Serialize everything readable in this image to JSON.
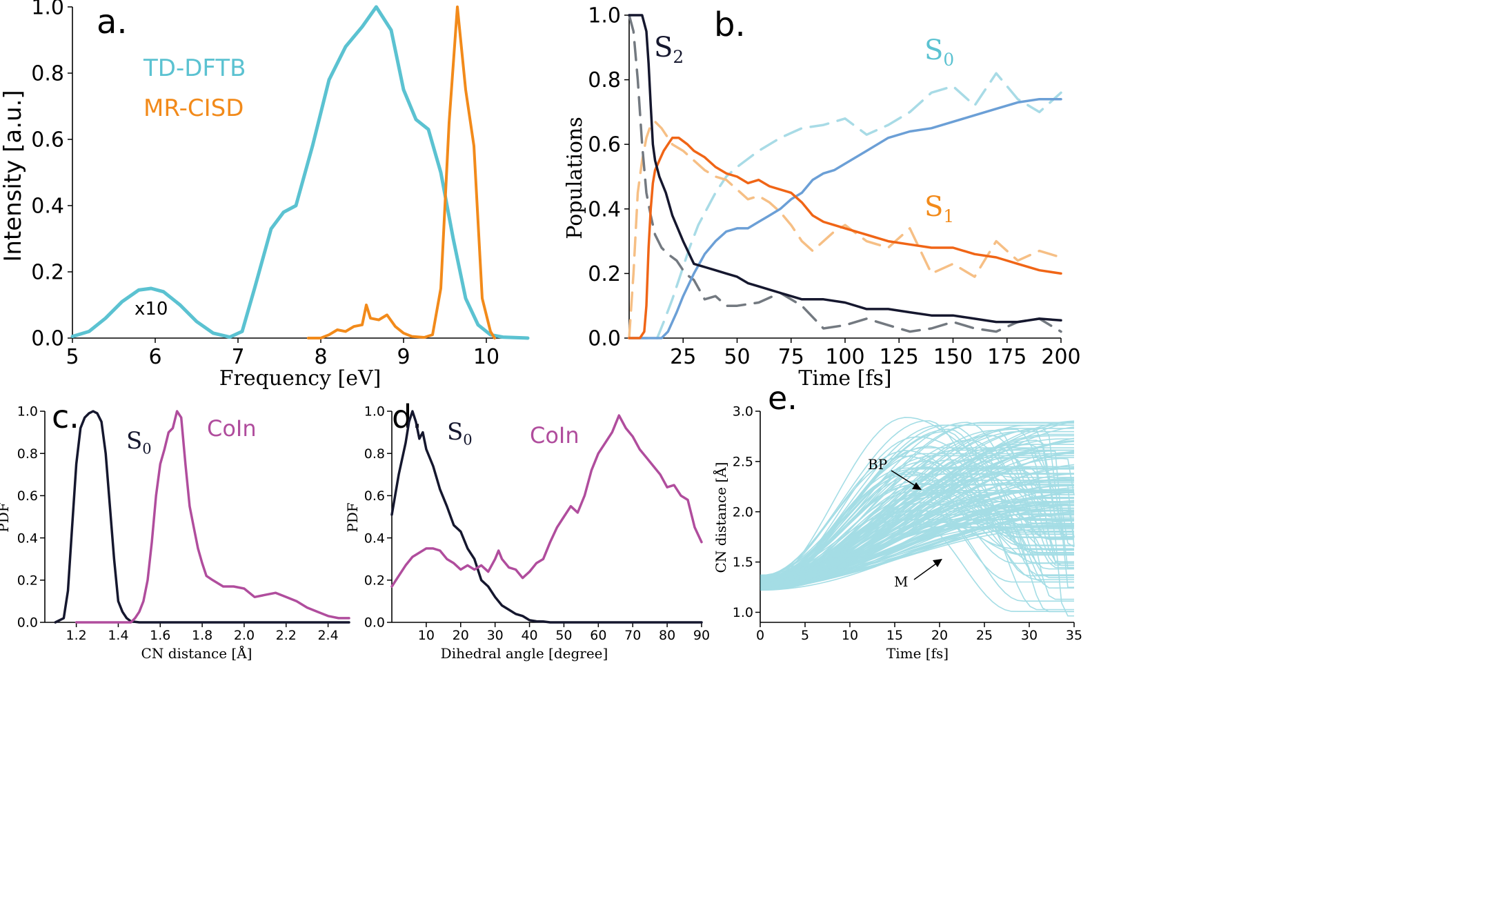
{
  "colors": {
    "cyan": "#5bc2d1",
    "orange": "#f28a1a",
    "navy": "#15172e",
    "magenta": "#b04d9d",
    "gray": "#737980",
    "lightcyan": "#a8dbe6",
    "lightorange": "#f6bf85",
    "s0blue": "#6b9fd6",
    "s1orange": "#f06516"
  },
  "chart_data": [
    {
      "panel": "a.",
      "type": "line",
      "xlabel": "Frequency [eV]",
      "ylabel": "Intensity [a.u.]",
      "xlim": [
        5,
        10.5
      ],
      "ylim": [
        0,
        1
      ],
      "xticks": [
        "5",
        "6",
        "7",
        "8",
        "9",
        "10"
      ],
      "yticks": [
        "0.0",
        "0.2",
        "0.4",
        "0.6",
        "0.8",
        "1.0"
      ],
      "annotation": "x10",
      "series": [
        {
          "name": "TD-DFTB",
          "color": "#5bc2d1",
          "x": [
            5.0,
            5.2,
            5.4,
            5.6,
            5.8,
            5.95,
            6.1,
            6.3,
            6.5,
            6.7,
            6.9,
            7.05,
            7.2,
            7.4,
            7.55,
            7.7,
            7.9,
            8.1,
            8.3,
            8.5,
            8.67,
            8.85,
            9.0,
            9.15,
            9.3,
            9.45,
            9.6,
            9.75,
            9.9,
            10.05,
            10.2,
            10.5
          ],
          "y": [
            0.005,
            0.02,
            0.06,
            0.11,
            0.145,
            0.15,
            0.14,
            0.1,
            0.05,
            0.015,
            0.003,
            0.02,
            0.15,
            0.33,
            0.38,
            0.4,
            0.58,
            0.78,
            0.88,
            0.94,
            1.0,
            0.93,
            0.75,
            0.66,
            0.63,
            0.5,
            0.3,
            0.12,
            0.04,
            0.01,
            0.003,
            0.0
          ]
        },
        {
          "name": "MR-CISD",
          "color": "#f28a1a",
          "x": [
            7.85,
            8.0,
            8.1,
            8.2,
            8.3,
            8.4,
            8.5,
            8.55,
            8.6,
            8.7,
            8.8,
            8.9,
            9.0,
            9.1,
            9.25,
            9.35,
            9.45,
            9.55,
            9.65,
            9.75,
            9.85,
            9.95,
            10.05,
            10.1
          ],
          "y": [
            0.0,
            0.0,
            0.01,
            0.025,
            0.02,
            0.035,
            0.04,
            0.1,
            0.06,
            0.055,
            0.07,
            0.035,
            0.015,
            0.005,
            0.002,
            0.01,
            0.15,
            0.65,
            1.0,
            0.75,
            0.58,
            0.12,
            0.02,
            0.0
          ]
        }
      ]
    },
    {
      "panel": "b.",
      "type": "line",
      "xlabel": "Time [fs]",
      "ylabel": "Populations",
      "xlim": [
        0,
        200
      ],
      "ylim": [
        0,
        1
      ],
      "xticks": [
        "25",
        "50",
        "75",
        "100",
        "125",
        "150",
        "175",
        "200"
      ],
      "yticks": [
        "0.0",
        "0.2",
        "0.4",
        "0.6",
        "0.8",
        "1.0"
      ],
      "labels": {
        "S2": "S",
        "S2sub": "2",
        "S0": "S",
        "S0sub": "0",
        "S1": "S",
        "S1sub": "1"
      },
      "series": [
        {
          "name": "S2 solid",
          "color": "#15172e",
          "dash": false,
          "x": [
            0,
            6,
            8,
            9,
            10,
            11,
            12,
            14,
            17,
            20,
            25,
            30,
            35,
            40,
            45,
            50,
            55,
            60,
            65,
            70,
            75,
            80,
            90,
            100,
            110,
            120,
            130,
            140,
            150,
            160,
            170,
            180,
            190,
            200
          ],
          "y": [
            1.0,
            1.0,
            0.95,
            0.85,
            0.72,
            0.6,
            0.55,
            0.5,
            0.45,
            0.38,
            0.3,
            0.23,
            0.22,
            0.21,
            0.2,
            0.19,
            0.17,
            0.16,
            0.15,
            0.14,
            0.13,
            0.12,
            0.12,
            0.11,
            0.09,
            0.09,
            0.08,
            0.07,
            0.07,
            0.06,
            0.05,
            0.05,
            0.06,
            0.055
          ]
        },
        {
          "name": "S0 solid",
          "color": "#6b9fd6",
          "dash": false,
          "x": [
            0,
            15,
            18,
            22,
            25,
            30,
            35,
            40,
            45,
            50,
            55,
            60,
            65,
            70,
            75,
            80,
            85,
            90,
            95,
            100,
            110,
            120,
            130,
            140,
            150,
            160,
            170,
            180,
            190,
            200
          ],
          "y": [
            0,
            0,
            0.02,
            0.08,
            0.13,
            0.2,
            0.26,
            0.3,
            0.33,
            0.34,
            0.34,
            0.36,
            0.38,
            0.4,
            0.43,
            0.45,
            0.49,
            0.51,
            0.52,
            0.54,
            0.58,
            0.62,
            0.64,
            0.65,
            0.67,
            0.69,
            0.71,
            0.73,
            0.74,
            0.74
          ]
        },
        {
          "name": "S1 solid",
          "color": "#f06516",
          "dash": false,
          "x": [
            0,
            5,
            7,
            8,
            9,
            10,
            11,
            12,
            14,
            16,
            18,
            20,
            23,
            27,
            30,
            35,
            40,
            45,
            50,
            55,
            60,
            65,
            70,
            75,
            80,
            85,
            90,
            95,
            100,
            110,
            120,
            130,
            140,
            150,
            160,
            170,
            180,
            190,
            200
          ],
          "y": [
            0,
            0,
            0.02,
            0.1,
            0.28,
            0.4,
            0.48,
            0.52,
            0.55,
            0.58,
            0.6,
            0.62,
            0.62,
            0.6,
            0.58,
            0.56,
            0.53,
            0.51,
            0.5,
            0.48,
            0.49,
            0.47,
            0.46,
            0.45,
            0.42,
            0.38,
            0.36,
            0.35,
            0.34,
            0.32,
            0.3,
            0.29,
            0.28,
            0.28,
            0.26,
            0.25,
            0.23,
            0.21,
            0.2
          ]
        },
        {
          "name": "S2 dashed",
          "color": "#737980",
          "dash": true,
          "x": [
            0,
            2,
            4,
            6,
            8,
            10,
            12,
            15,
            18,
            22,
            26,
            30,
            35,
            40,
            45,
            50,
            60,
            70,
            80,
            90,
            100,
            110,
            120,
            130,
            140,
            150,
            160,
            170,
            180,
            190,
            200
          ],
          "y": [
            1.0,
            0.95,
            0.8,
            0.6,
            0.45,
            0.38,
            0.32,
            0.28,
            0.26,
            0.24,
            0.2,
            0.18,
            0.12,
            0.13,
            0.1,
            0.1,
            0.11,
            0.14,
            0.1,
            0.03,
            0.04,
            0.06,
            0.04,
            0.02,
            0.03,
            0.05,
            0.03,
            0.02,
            0.05,
            0.06,
            0.02
          ]
        },
        {
          "name": "S0 dashed",
          "color": "#a8dbe6",
          "dash": true,
          "x": [
            0,
            13,
            16,
            20,
            24,
            28,
            32,
            36,
            40,
            45,
            50,
            60,
            70,
            80,
            90,
            100,
            110,
            120,
            130,
            140,
            150,
            160,
            170,
            180,
            190,
            200
          ],
          "y": [
            0,
            0,
            0.05,
            0.12,
            0.2,
            0.28,
            0.35,
            0.4,
            0.45,
            0.5,
            0.53,
            0.58,
            0.62,
            0.65,
            0.66,
            0.68,
            0.63,
            0.66,
            0.7,
            0.76,
            0.78,
            0.72,
            0.82,
            0.74,
            0.7,
            0.76
          ]
        },
        {
          "name": "S1 dashed",
          "color": "#f6bf85",
          "dash": true,
          "x": [
            0,
            2,
            4,
            6,
            8,
            10,
            12,
            15,
            20,
            25,
            30,
            35,
            40,
            45,
            50,
            55,
            60,
            65,
            70,
            75,
            80,
            85,
            90,
            95,
            100,
            110,
            120,
            130,
            140,
            150,
            160,
            170,
            180,
            190,
            200
          ],
          "y": [
            0,
            0.2,
            0.45,
            0.55,
            0.62,
            0.66,
            0.67,
            0.65,
            0.6,
            0.58,
            0.55,
            0.52,
            0.5,
            0.49,
            0.46,
            0.43,
            0.44,
            0.42,
            0.39,
            0.35,
            0.3,
            0.27,
            0.3,
            0.33,
            0.35,
            0.3,
            0.28,
            0.34,
            0.2,
            0.23,
            0.19,
            0.3,
            0.24,
            0.27,
            0.25
          ]
        }
      ]
    },
    {
      "panel": "c.",
      "type": "line",
      "xlabel": "CN distance [Å]",
      "ylabel": "PDF",
      "xlim": [
        1.05,
        2.5
      ],
      "ylim": [
        0,
        1
      ],
      "xticks": [
        "1.2",
        "1.4",
        "1.6",
        "1.8",
        "2.0",
        "2.2",
        "2.4"
      ],
      "yticks": [
        "0.0",
        "0.2",
        "0.4",
        "0.6",
        "0.8",
        "1.0"
      ],
      "labels": {
        "S0": "S",
        "S0sub": "0",
        "CoIn": "CoIn"
      },
      "series": [
        {
          "name": "S0",
          "color": "#15172e",
          "x": [
            1.1,
            1.14,
            1.16,
            1.18,
            1.2,
            1.22,
            1.24,
            1.26,
            1.28,
            1.3,
            1.32,
            1.34,
            1.36,
            1.38,
            1.4,
            1.42,
            1.44,
            1.46,
            1.5,
            2.5
          ],
          "y": [
            0.0,
            0.02,
            0.15,
            0.45,
            0.75,
            0.92,
            0.97,
            0.99,
            1.0,
            0.99,
            0.95,
            0.8,
            0.55,
            0.3,
            0.1,
            0.05,
            0.02,
            0.005,
            0.0,
            0.0
          ]
        },
        {
          "name": "CoIn",
          "color": "#b04d9d",
          "x": [
            1.2,
            1.46,
            1.48,
            1.5,
            1.52,
            1.54,
            1.56,
            1.58,
            1.6,
            1.62,
            1.64,
            1.66,
            1.68,
            1.7,
            1.72,
            1.74,
            1.76,
            1.78,
            1.8,
            1.82,
            1.85,
            1.9,
            1.95,
            2.0,
            2.05,
            2.1,
            2.15,
            2.2,
            2.25,
            2.3,
            2.35,
            2.4,
            2.45,
            2.5
          ],
          "y": [
            0.0,
            0.0,
            0.02,
            0.05,
            0.1,
            0.2,
            0.38,
            0.6,
            0.75,
            0.82,
            0.9,
            0.92,
            1.0,
            0.97,
            0.75,
            0.55,
            0.45,
            0.35,
            0.28,
            0.22,
            0.2,
            0.17,
            0.17,
            0.16,
            0.12,
            0.13,
            0.14,
            0.12,
            0.1,
            0.07,
            0.05,
            0.03,
            0.02,
            0.02
          ]
        }
      ]
    },
    {
      "panel": "d.",
      "type": "line",
      "xlabel": "Dihedral angle [degree]",
      "ylabel": "PDF",
      "xlim": [
        0,
        90
      ],
      "ylim": [
        0,
        1
      ],
      "xticks": [
        "10",
        "20",
        "30",
        "40",
        "50",
        "60",
        "70",
        "80",
        "90"
      ],
      "yticks": [
        "0.0",
        "0.2",
        "0.4",
        "0.6",
        "0.8",
        "1.0"
      ],
      "labels": {
        "S0": "S",
        "S0sub": "0",
        "CoIn": "CoIn"
      },
      "series": [
        {
          "name": "S0",
          "color": "#15172e",
          "x": [
            0,
            2,
            4,
            5,
            6,
            7,
            8,
            9,
            10,
            12,
            14,
            16,
            18,
            20,
            22,
            24,
            26,
            28,
            30,
            32,
            34,
            36,
            38,
            40,
            42,
            44,
            46,
            90
          ],
          "y": [
            0.51,
            0.7,
            0.85,
            0.95,
            1.0,
            0.95,
            0.87,
            0.9,
            0.82,
            0.74,
            0.63,
            0.55,
            0.46,
            0.43,
            0.35,
            0.3,
            0.2,
            0.17,
            0.12,
            0.08,
            0.06,
            0.04,
            0.03,
            0.01,
            0.005,
            0.004,
            0.0,
            0.0
          ]
        },
        {
          "name": "CoIn",
          "color": "#b04d9d",
          "x": [
            0,
            2,
            4,
            6,
            8,
            10,
            12,
            14,
            16,
            18,
            20,
            22,
            24,
            26,
            28,
            30,
            31,
            32,
            34,
            36,
            38,
            40,
            42,
            44,
            46,
            48,
            50,
            52,
            54,
            56,
            58,
            60,
            62,
            64,
            66,
            68,
            70,
            72,
            74,
            76,
            78,
            80,
            82,
            84,
            86,
            88,
            90
          ],
          "y": [
            0.17,
            0.22,
            0.27,
            0.31,
            0.33,
            0.35,
            0.35,
            0.34,
            0.3,
            0.28,
            0.25,
            0.27,
            0.25,
            0.27,
            0.24,
            0.3,
            0.34,
            0.3,
            0.26,
            0.25,
            0.21,
            0.24,
            0.28,
            0.3,
            0.38,
            0.45,
            0.5,
            0.55,
            0.52,
            0.6,
            0.72,
            0.8,
            0.85,
            0.9,
            0.98,
            0.92,
            0.88,
            0.82,
            0.78,
            0.74,
            0.7,
            0.64,
            0.65,
            0.6,
            0.58,
            0.45,
            0.38
          ]
        }
      ]
    },
    {
      "panel": "e.",
      "type": "line",
      "xlabel": "Time [fs]",
      "ylabel": "CN distance [Å]",
      "xlim": [
        0,
        35
      ],
      "ylim": [
        0.9,
        3.0
      ],
      "xticks": [
        "0",
        "5",
        "10",
        "15",
        "20",
        "25",
        "30",
        "35"
      ],
      "yticks": [
        "1.0",
        "1.5",
        "2.0",
        "2.5",
        "3.0"
      ],
      "trajectory_count": 150,
      "start_range": [
        1.22,
        1.37
      ],
      "max_range": [
        1.82,
        2.94
      ],
      "annotations": {
        "BP": "BP",
        "M": "M"
      },
      "color": "#5bc2d1"
    }
  ]
}
